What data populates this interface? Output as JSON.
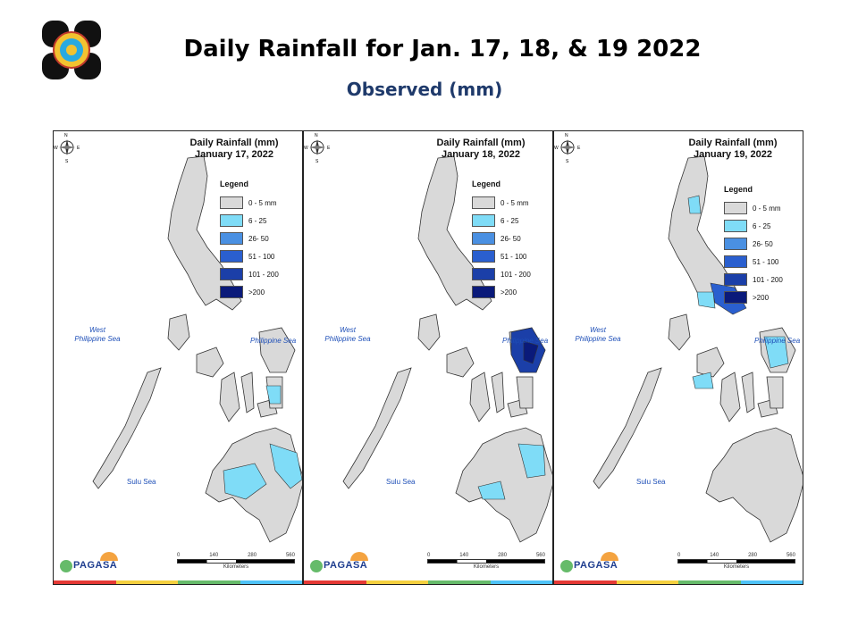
{
  "header": {
    "title": "Daily Rainfall for Jan. 17, 18, & 19 2022",
    "subtitle": "Observed (mm)"
  },
  "panels": [
    {
      "title_line1": "Daily Rainfall (mm)",
      "title_line2": "January 17, 2022"
    },
    {
      "title_line1": "Daily Rainfall (mm)",
      "title_line2": "January 18, 2022"
    },
    {
      "title_line1": "Daily Rainfall (mm)",
      "title_line2": "January 19, 2022"
    }
  ],
  "legend": {
    "title": "Legend",
    "items": [
      {
        "label": "0 - 5 mm",
        "color": "#d9d9d9"
      },
      {
        "label": "6 - 25",
        "color": "#7fdcf7"
      },
      {
        "label": "26- 50",
        "color": "#4a90e2"
      },
      {
        "label": "51 - 100",
        "color": "#2a5fcf"
      },
      {
        "label": "101 - 200",
        "color": "#1b3fa8"
      },
      {
        "label": ">200",
        "color": "#0a1a7a"
      }
    ]
  },
  "labels": {
    "west_sea_1": "West",
    "west_sea_2": "Philippine Sea",
    "philippine_sea": "Philippine Sea",
    "sulu_sea": "Sulu Sea",
    "brand": "PAGASA",
    "compass_n": "N",
    "compass_s": "S",
    "compass_e": "E",
    "compass_w": "W"
  },
  "scale": {
    "ticks": [
      "0",
      "140",
      "280",
      "560"
    ],
    "unit": "Kilometers"
  },
  "colors": {
    "land": "#d9d9d9",
    "strip": [
      "#e53935",
      "#f4d03f",
      "#66bb6a",
      "#4fc3f7"
    ]
  }
}
